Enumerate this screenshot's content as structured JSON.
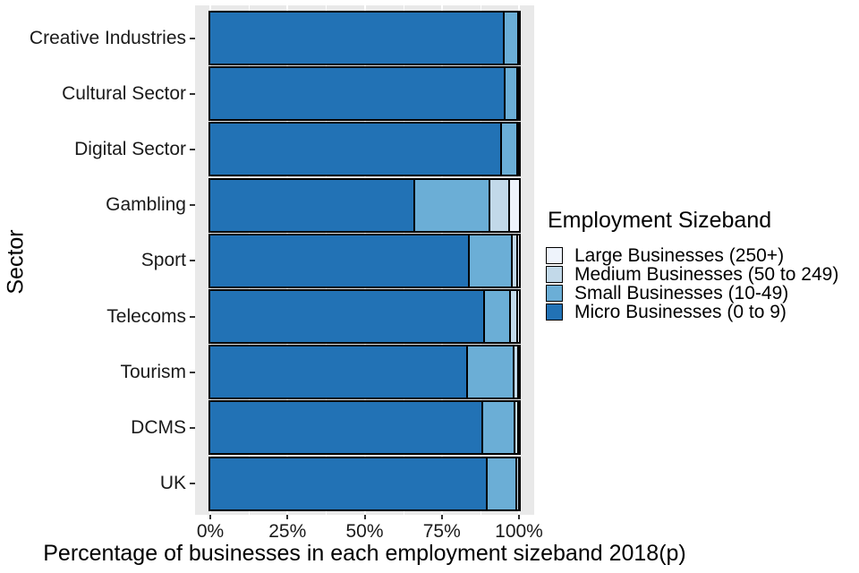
{
  "legend": {
    "title": "Employment Sizeband"
  },
  "colors": {
    "micro": "#2272b5",
    "small": "#6baed6",
    "medium": "#c2d9e9",
    "large": "#eef3fb",
    "panel_background": "#e9e9e9",
    "gridline": "#ffffff",
    "bar_border": "#000000"
  },
  "chart_data": {
    "type": "bar",
    "stacked": true,
    "orientation": "horizontal",
    "title": "",
    "xlabel": "Percentage of businesses in each employment sizeband 2018(p)",
    "ylabel": "Sector",
    "xlim": [
      0,
      100
    ],
    "x_tick_labels": [
      "0%",
      "25%",
      "50%",
      "75%",
      "100%"
    ],
    "x_tick_values": [
      0,
      25,
      50,
      75,
      100
    ],
    "grid": "vertical white major and minor gridlines on gray panel",
    "legend_position": "right",
    "categories": [
      "Creative Industries",
      "Cultural Sector",
      "Digital Sector",
      "Gambling",
      "Sport",
      "Telecoms",
      "Tourism",
      "DCMS",
      "UK"
    ],
    "series": [
      {
        "name": "Micro Businesses (0 to 9)",
        "color": "#2272b5",
        "values": [
          94.8,
          95.1,
          93.9,
          65.8,
          83.5,
          88.4,
          82.9,
          87.8,
          89.3
        ]
      },
      {
        "name": "Small Businesses (10-49)",
        "color": "#6baed6",
        "values": [
          4.5,
          4.0,
          5.2,
          24.3,
          13.9,
          8.4,
          15.1,
          10.5,
          9.5
        ]
      },
      {
        "name": "Medium Businesses (50 to 249)",
        "color": "#c2d9e9",
        "values": [
          0.5,
          0.6,
          0.6,
          6.5,
          1.8,
          2.2,
          1.4,
          1.2,
          0.9
        ]
      },
      {
        "name": "Large Businesses (250+)",
        "color": "#eef3fb",
        "values": [
          0.2,
          0.3,
          0.3,
          3.4,
          0.8,
          1.0,
          0.6,
          0.5,
          0.3
        ]
      }
    ],
    "legend_order_note": "legend lists series top-to-bottom: Large, Medium, Small, Micro"
  }
}
